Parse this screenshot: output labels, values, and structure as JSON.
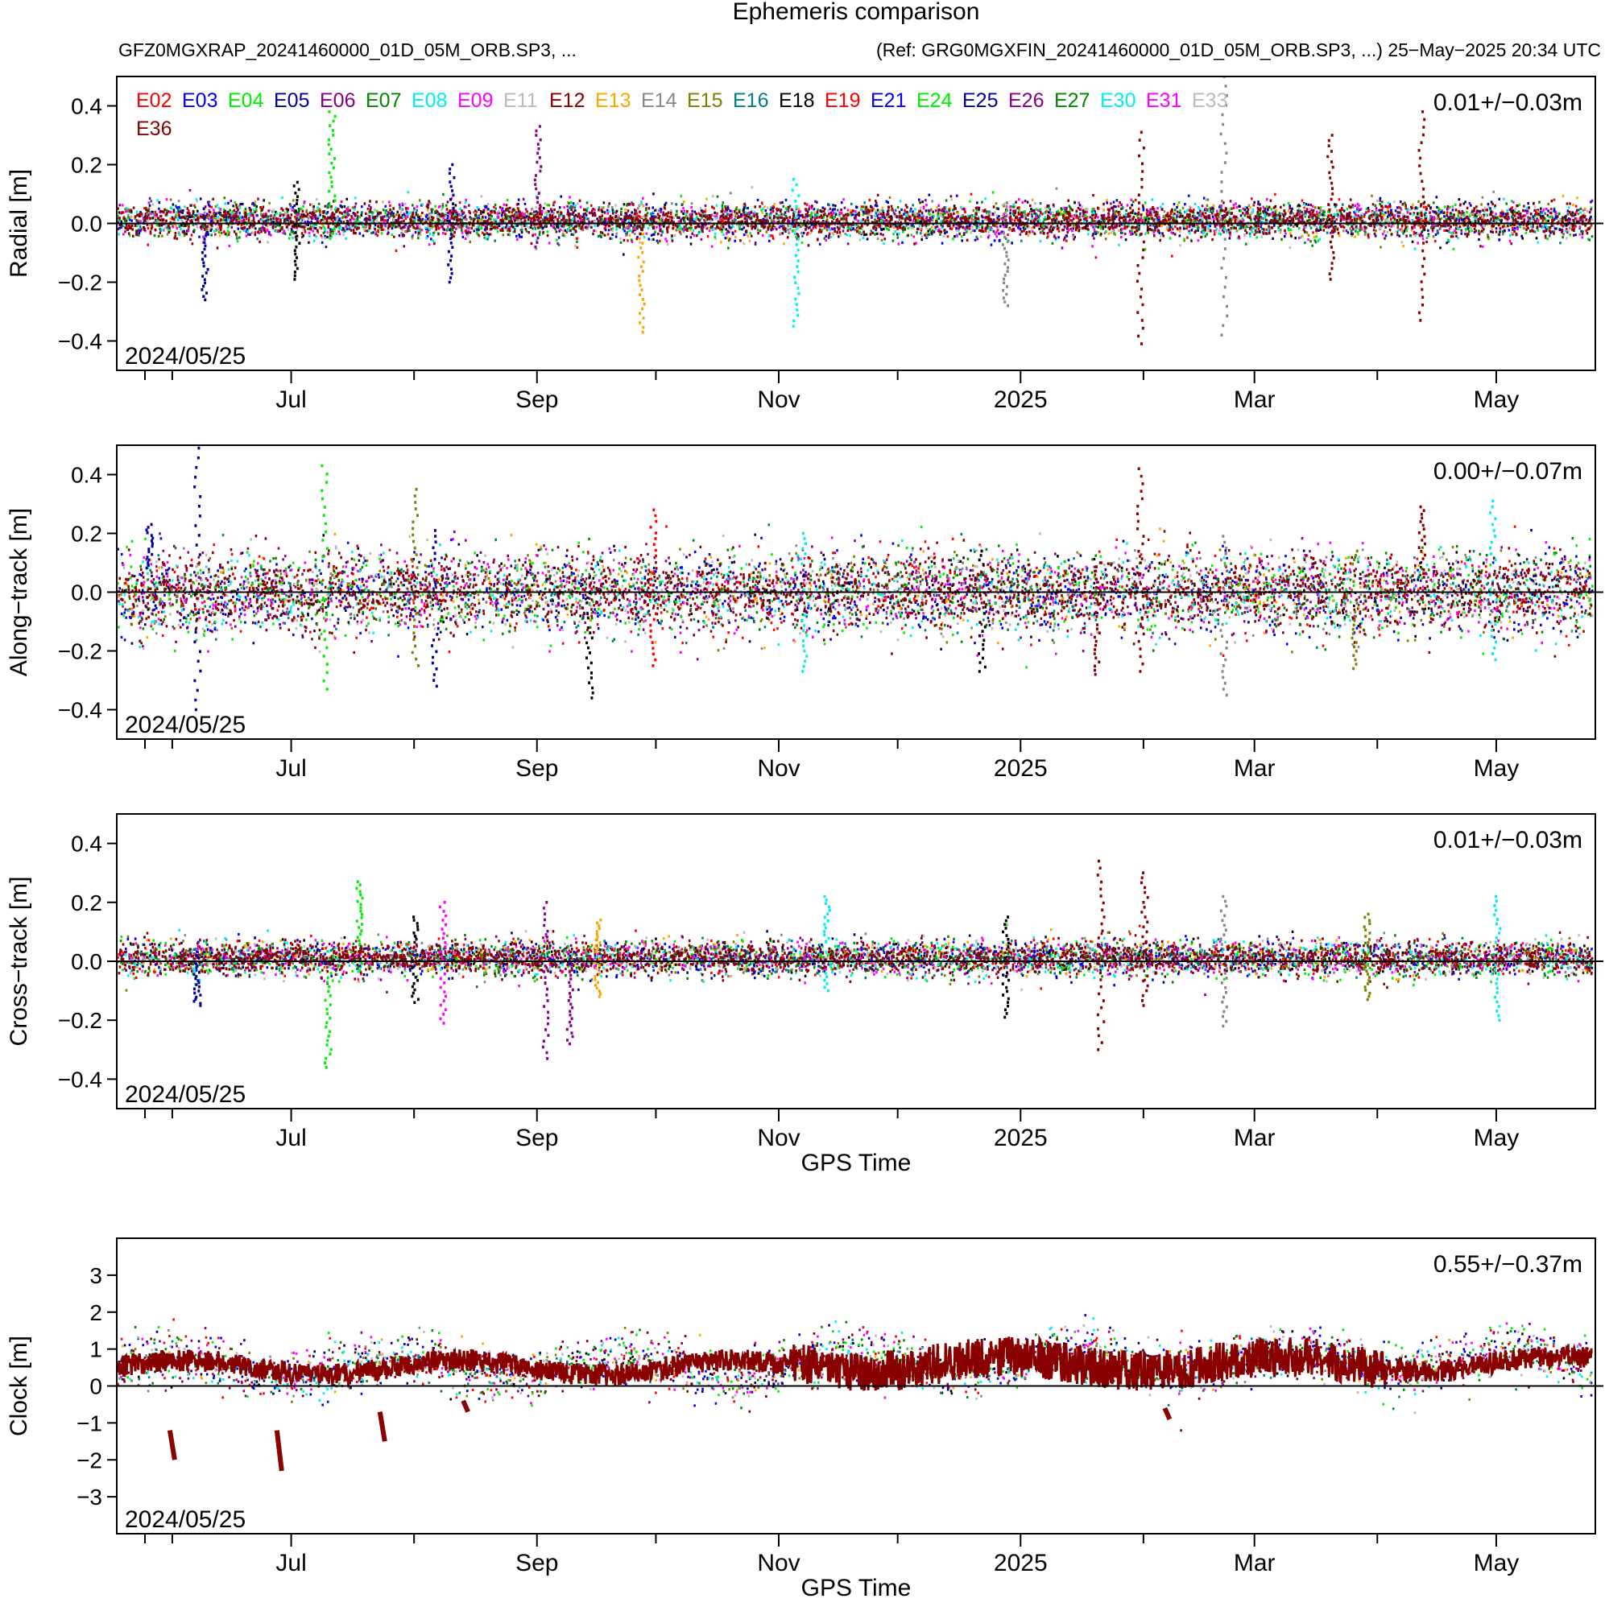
{
  "figure": {
    "title": "Ephemeris comparison",
    "subtitle_left": "GFZ0MGXRAP_20241460000_01D_05M_ORB.SP3, ...",
    "subtitle_right": "(Ref: GRG0MGXFIN_20241460000_01D_05M_ORB.SP3, ...) 25−May−2025 20:34 UTC"
  },
  "chart_data": [
    {
      "type": "scatter",
      "id": "radial",
      "ylabel": "Radial [m]",
      "xlabel": "",
      "ylim": [
        -0.5,
        0.5
      ],
      "yticks": [
        "−0.4",
        "−0.2",
        "0.0",
        "0.2",
        "0.4"
      ],
      "ytick_values": [
        -0.4,
        -0.2,
        0.0,
        0.2,
        0.4
      ],
      "stat": "0.01+/−0.03m",
      "start_label": "2024/05/25",
      "mean": 0.01,
      "std": 0.03,
      "spikes": [
        {
          "date": "2024-06-09",
          "min": -0.26,
          "max": 0.05,
          "sat": "E05"
        },
        {
          "date": "2024-07-02",
          "min": -0.19,
          "max": 0.14,
          "sat": "E18"
        },
        {
          "date": "2024-07-11",
          "min": -0.05,
          "max": 0.38,
          "sat": "E04"
        },
        {
          "date": "2024-08-10",
          "min": -0.2,
          "max": 0.2,
          "sat": "E05"
        },
        {
          "date": "2024-09-01",
          "min": -0.08,
          "max": 0.33,
          "sat": "E06"
        },
        {
          "date": "2024-09-27",
          "min": -0.37,
          "max": 0.06,
          "sat": "E13"
        },
        {
          "date": "2024-11-05",
          "min": -0.35,
          "max": 0.15,
          "sat": "E30"
        },
        {
          "date": "2024-12-28",
          "min": -0.28,
          "max": 0.07,
          "sat": "E14"
        },
        {
          "date": "2025-01-31",
          "min": -0.41,
          "max": 0.31,
          "sat": "E36"
        },
        {
          "date": "2025-02-21",
          "min": -0.38,
          "max": 0.5,
          "sat": "E14"
        },
        {
          "date": "2025-03-20",
          "min": -0.19,
          "max": 0.3,
          "sat": "E36"
        },
        {
          "date": "2025-04-12",
          "min": -0.33,
          "max": 0.38,
          "sat": "E36"
        }
      ]
    },
    {
      "type": "scatter",
      "id": "along",
      "ylabel": "Along−track [m]",
      "xlabel": "",
      "ylim": [
        -0.5,
        0.5
      ],
      "yticks": [
        "−0.4",
        "−0.2",
        "0.0",
        "0.2",
        "0.4"
      ],
      "ytick_values": [
        -0.4,
        -0.2,
        0.0,
        0.2,
        0.4
      ],
      "stat": "0.00+/−0.07m",
      "start_label": "2024/05/25",
      "mean": 0.0,
      "std": 0.07,
      "spikes": [
        {
          "date": "2024-05-26",
          "min": -0.02,
          "max": 0.23,
          "sat": "E05"
        },
        {
          "date": "2024-06-07",
          "min": -0.4,
          "max": 0.49,
          "sat": "E05"
        },
        {
          "date": "2024-07-09",
          "min": -0.33,
          "max": 0.43,
          "sat": "E04"
        },
        {
          "date": "2024-08-01",
          "min": -0.25,
          "max": 0.35,
          "sat": "E15"
        },
        {
          "date": "2024-08-06",
          "min": -0.32,
          "max": 0.21,
          "sat": "E05"
        },
        {
          "date": "2024-09-14",
          "min": -0.36,
          "max": 0.1,
          "sat": "E18"
        },
        {
          "date": "2024-09-30",
          "min": -0.25,
          "max": 0.28,
          "sat": "E19"
        },
        {
          "date": "2024-11-07",
          "min": -0.27,
          "max": 0.2,
          "sat": "E30"
        },
        {
          "date": "2024-12-22",
          "min": -0.27,
          "max": 0.14,
          "sat": "E18"
        },
        {
          "date": "2025-01-20",
          "min": -0.28,
          "max": 0.1,
          "sat": "E36"
        },
        {
          "date": "2025-01-31",
          "min": -0.27,
          "max": 0.42,
          "sat": "E36"
        },
        {
          "date": "2025-02-21",
          "min": -0.35,
          "max": 0.19,
          "sat": "E14"
        },
        {
          "date": "2025-03-26",
          "min": -0.26,
          "max": 0.14,
          "sat": "E15"
        },
        {
          "date": "2025-04-12",
          "min": -0.05,
          "max": 0.29,
          "sat": "E36"
        },
        {
          "date": "2025-04-30",
          "min": -0.23,
          "max": 0.31,
          "sat": "E30"
        }
      ]
    },
    {
      "type": "scatter",
      "id": "cross",
      "ylabel": "Cross−track [m]",
      "xlabel": "GPS Time",
      "ylim": [
        -0.5,
        0.5
      ],
      "yticks": [
        "−0.4",
        "−0.2",
        "0.0",
        "0.2",
        "0.4"
      ],
      "ytick_values": [
        -0.4,
        -0.2,
        0.0,
        0.2,
        0.4
      ],
      "stat": "0.01+/−0.03m",
      "start_label": "2024/05/25",
      "mean": 0.01,
      "std": 0.03,
      "spikes": [
        {
          "date": "2024-06-07",
          "min": -0.15,
          "max": 0.04,
          "sat": "E05"
        },
        {
          "date": "2024-07-10",
          "min": -0.36,
          "max": 0.05,
          "sat": "E04"
        },
        {
          "date": "2024-07-18",
          "min": -0.03,
          "max": 0.27,
          "sat": "E04"
        },
        {
          "date": "2024-08-01",
          "min": -0.14,
          "max": 0.15,
          "sat": "E18"
        },
        {
          "date": "2024-08-08",
          "min": -0.21,
          "max": 0.2,
          "sat": "E09"
        },
        {
          "date": "2024-09-03",
          "min": -0.33,
          "max": 0.2,
          "sat": "E06"
        },
        {
          "date": "2024-09-09",
          "min": -0.28,
          "max": 0.05,
          "sat": "E06"
        },
        {
          "date": "2024-09-16",
          "min": -0.12,
          "max": 0.14,
          "sat": "E13"
        },
        {
          "date": "2024-11-13",
          "min": -0.1,
          "max": 0.22,
          "sat": "E30"
        },
        {
          "date": "2024-12-28",
          "min": -0.19,
          "max": 0.15,
          "sat": "E18"
        },
        {
          "date": "2025-01-21",
          "min": -0.3,
          "max": 0.34,
          "sat": "E36"
        },
        {
          "date": "2025-02-01",
          "min": -0.15,
          "max": 0.3,
          "sat": "E36"
        },
        {
          "date": "2025-02-21",
          "min": -0.22,
          "max": 0.22,
          "sat": "E14"
        },
        {
          "date": "2025-03-29",
          "min": -0.13,
          "max": 0.16,
          "sat": "E15"
        },
        {
          "date": "2025-05-01",
          "min": -0.2,
          "max": 0.22,
          "sat": "E30"
        }
      ]
    },
    {
      "type": "scatter",
      "id": "clock",
      "ylabel": "Clock [m]",
      "xlabel": "GPS Time",
      "ylim": [
        -4,
        4
      ],
      "yticks": [
        "−3",
        "−2",
        "−1",
        "0",
        "1",
        "2",
        "3"
      ],
      "ytick_values": [
        -3,
        -2,
        -1,
        0,
        1,
        2,
        3
      ],
      "stat": "0.55+/−0.37m",
      "start_label": "2024/05/25",
      "mean": 0.55,
      "std": 0.37,
      "drops": [
        {
          "date": "2024-06-01",
          "from": -1.2,
          "to": -2.0
        },
        {
          "date": "2024-06-28",
          "from": -1.2,
          "to": -2.3
        },
        {
          "date": "2024-07-24",
          "from": -0.7,
          "to": -1.5
        },
        {
          "date": "2024-08-14",
          "from": -0.4,
          "to": -0.7
        },
        {
          "date": "2025-02-07",
          "from": -0.6,
          "to": -0.9
        }
      ]
    }
  ],
  "xaxis": {
    "label": "GPS Time",
    "range": [
      "2024-05-18",
      "2025-05-26"
    ],
    "data_end": "2025-05-25",
    "major_ticks": [
      {
        "label": "Jul",
        "date": "2024-07-01"
      },
      {
        "label": "Sep",
        "date": "2024-09-01"
      },
      {
        "label": "Nov",
        "date": "2024-11-01"
      },
      {
        "label": "2025",
        "date": "2025-01-01"
      },
      {
        "label": "Mar",
        "date": "2025-03-01"
      },
      {
        "label": "May",
        "date": "2025-05-01"
      }
    ],
    "minor_ticks": [
      "2024-06-01",
      "2024-08-01",
      "2024-10-01",
      "2024-12-01",
      "2025-02-01",
      "2025-04-01"
    ]
  },
  "legend": [
    {
      "name": "E02",
      "color": "#ff0000"
    },
    {
      "name": "E03",
      "color": "#0000ff"
    },
    {
      "name": "E04",
      "color": "#00ee00"
    },
    {
      "name": "E05",
      "color": "#000099"
    },
    {
      "name": "E06",
      "color": "#880088"
    },
    {
      "name": "E07",
      "color": "#008800"
    },
    {
      "name": "E08",
      "color": "#00eeee"
    },
    {
      "name": "E09",
      "color": "#ff00ff"
    },
    {
      "name": "E11",
      "color": "#bbbbbb"
    },
    {
      "name": "E12",
      "color": "#880000"
    },
    {
      "name": "E13",
      "color": "#ffa500"
    },
    {
      "name": "E14",
      "color": "#888888"
    },
    {
      "name": "E15",
      "color": "#808000"
    },
    {
      "name": "E16",
      "color": "#008080"
    },
    {
      "name": "E18",
      "color": "#000000"
    },
    {
      "name": "E19",
      "color": "#ff0000"
    },
    {
      "name": "E21",
      "color": "#0000ff"
    },
    {
      "name": "E24",
      "color": "#00ee00"
    },
    {
      "name": "E25",
      "color": "#000099"
    },
    {
      "name": "E26",
      "color": "#880088"
    },
    {
      "name": "E27",
      "color": "#008800"
    },
    {
      "name": "E30",
      "color": "#00eeee"
    },
    {
      "name": "E31",
      "color": "#ff00ff"
    },
    {
      "name": "E33",
      "color": "#bbbbbb"
    },
    {
      "name": "E36",
      "color": "#880000"
    }
  ]
}
